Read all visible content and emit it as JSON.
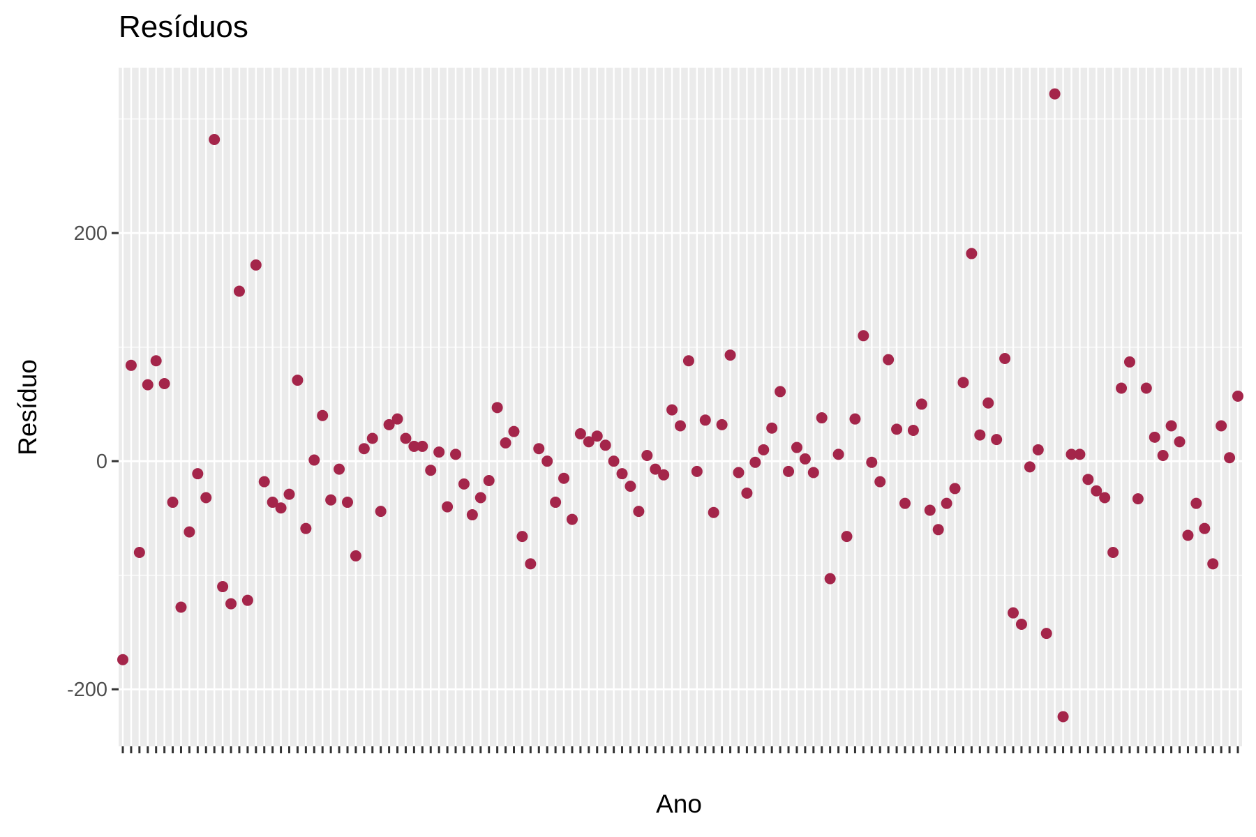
{
  "chart_data": {
    "type": "scatter",
    "title": "Resíduos",
    "xlabel": "Ano",
    "ylabel": "Resíduo",
    "ylim": [
      -250,
      345
    ],
    "y_ticks": [
      -200,
      0,
      200
    ],
    "y_tick_labels": [
      "-200",
      "0",
      "200"
    ],
    "x_axis": "discrete",
    "x_tick_labels_note": "tick labels are overlapping and illegible",
    "grid": true,
    "panel_background": "#EBEBEB",
    "grid_color": "#FFFFFF",
    "point_color": "#A4254A",
    "series": [
      {
        "values": [
          -174,
          84,
          -80,
          67,
          88,
          68,
          -36,
          -128,
          -62,
          -11,
          -32,
          282,
          -110,
          -125,
          149,
          -122,
          172,
          -18,
          -36,
          -41,
          -29,
          71,
          -59,
          1,
          40,
          -34,
          -7,
          -36,
          -83,
          11,
          20,
          -44,
          32,
          37,
          20,
          13,
          13,
          -8,
          8,
          -40,
          6,
          -20,
          -47,
          -32,
          -17,
          47,
          16,
          26,
          -66,
          -90,
          11,
          0,
          -36,
          -15,
          -51,
          24,
          17,
          22,
          14,
          0,
          -11,
          -22,
          -44,
          5,
          -7,
          -12,
          45,
          31,
          88,
          -9,
          36,
          -45,
          32,
          93,
          -10,
          -28,
          -1,
          10,
          29,
          61,
          -9,
          12,
          2,
          -10,
          38,
          -103,
          6,
          -66,
          37,
          110,
          -1,
          -18,
          89,
          28,
          -37,
          27,
          50,
          -43,
          -60,
          -37,
          -24,
          69,
          182,
          23,
          51,
          19,
          90,
          -133,
          -143,
          -5,
          10,
          -151,
          322,
          -224,
          6,
          6,
          -16,
          -26,
          -32,
          -80,
          64,
          87,
          -33,
          64,
          21,
          5,
          31,
          17,
          -65,
          -37,
          -59,
          -90,
          31,
          3,
          57
        ]
      }
    ]
  }
}
